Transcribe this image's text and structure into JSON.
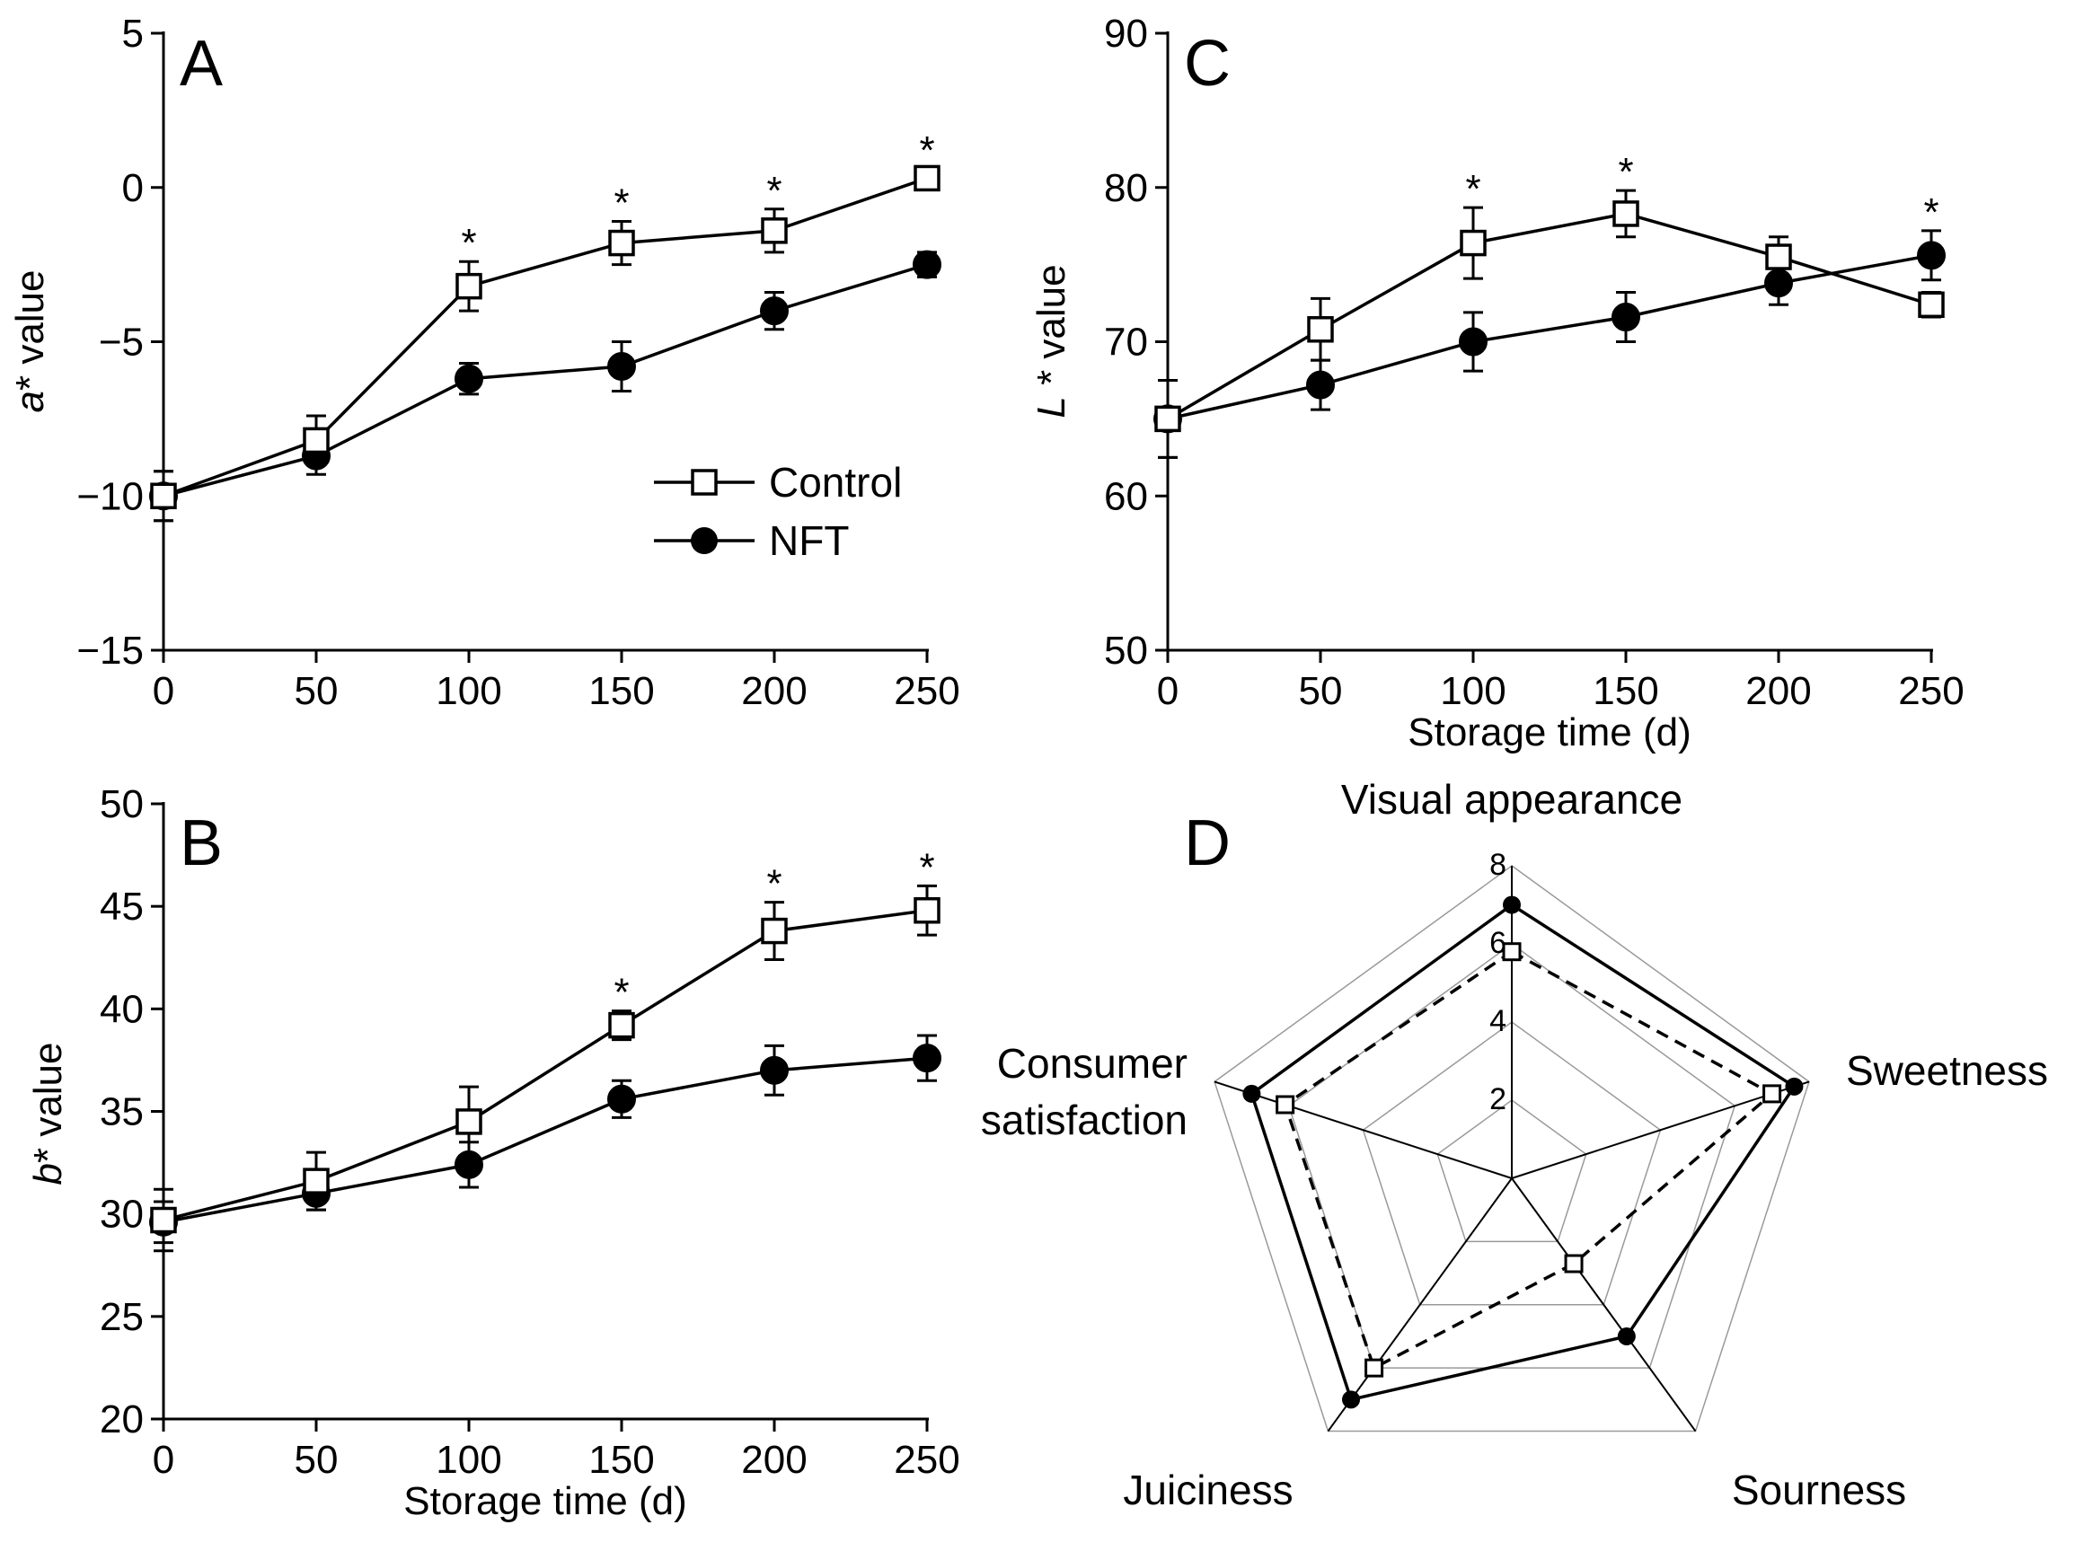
{
  "colors": {
    "ink": "#000000",
    "marker_fill_control": "#ffffff",
    "marker_fill_nft": "#000000",
    "radar_grid": "#9a9a9a"
  },
  "chart_data": [
    {
      "panel": "A",
      "type": "line",
      "xlabel": "",
      "ylabel": "a* value",
      "ylabel_italic": "a",
      "ylabel_rest": "* value",
      "xlim": [
        0,
        250
      ],
      "ylim": [
        -15,
        5
      ],
      "xticks": [
        0,
        50,
        100,
        150,
        200,
        250
      ],
      "yticks": [
        -15,
        -10,
        -5,
        0,
        5
      ],
      "xtick_labels": [
        "0",
        "50",
        "100",
        "150",
        "200",
        "250"
      ],
      "ytick_labels": [
        "−15",
        "−10",
        "−5",
        "0",
        "5"
      ],
      "legend": {
        "position": "middle-right",
        "entries": [
          "Control",
          "NFT"
        ]
      },
      "series": [
        {
          "name": "Control",
          "marker": "open-square",
          "x": [
            0,
            50,
            100,
            150,
            200,
            250
          ],
          "y": [
            -10,
            -8.2,
            -3.2,
            -1.8,
            -1.4,
            0.3
          ],
          "err": [
            0.8,
            0.8,
            0.8,
            0.7,
            0.7,
            0.3
          ]
        },
        {
          "name": "NFT",
          "marker": "filled-circle",
          "x": [
            0,
            50,
            100,
            150,
            200,
            250
          ],
          "y": [
            -10,
            -8.7,
            -6.2,
            -5.8,
            -4.0,
            -2.5
          ],
          "err": [
            0.8,
            0.6,
            0.5,
            0.8,
            0.6,
            0.4
          ]
        }
      ],
      "significance": {
        "symbol": "*",
        "x": [
          100,
          150,
          200,
          250
        ]
      }
    },
    {
      "panel": "B",
      "type": "line",
      "xlabel": "Storage time (d)",
      "ylabel": "b* value",
      "ylabel_italic": "b",
      "ylabel_rest": "* value",
      "xlim": [
        0,
        250
      ],
      "ylim": [
        20,
        50
      ],
      "xticks": [
        0,
        50,
        100,
        150,
        200,
        250
      ],
      "yticks": [
        20,
        25,
        30,
        35,
        40,
        45,
        50
      ],
      "xtick_labels": [
        "0",
        "50",
        "100",
        "150",
        "200",
        "250"
      ],
      "ytick_labels": [
        "20",
        "25",
        "30",
        "35",
        "40",
        "45",
        "50"
      ],
      "series": [
        {
          "name": "Control",
          "marker": "open-square",
          "x": [
            0,
            50,
            100,
            150,
            200,
            250
          ],
          "y": [
            29.7,
            31.6,
            34.5,
            39.2,
            43.8,
            44.8
          ],
          "err": [
            1.5,
            1.4,
            1.7,
            0.7,
            1.4,
            1.2
          ]
        },
        {
          "name": "NFT",
          "marker": "filled-circle",
          "x": [
            0,
            50,
            100,
            150,
            200,
            250
          ],
          "y": [
            29.6,
            31.0,
            32.4,
            35.6,
            37.0,
            37.6
          ],
          "err": [
            1.0,
            0.8,
            1.1,
            0.9,
            1.2,
            1.1
          ]
        }
      ],
      "significance": {
        "symbol": "*",
        "x": [
          150,
          200,
          250
        ]
      }
    },
    {
      "panel": "C",
      "type": "line",
      "xlabel": "Storage time (d)",
      "ylabel": "L* value",
      "ylabel_italic": "L",
      "ylabel_rest": " * value",
      "xlim": [
        0,
        250
      ],
      "ylim": [
        50,
        90
      ],
      "xticks": [
        0,
        50,
        100,
        150,
        200,
        250
      ],
      "yticks": [
        50,
        60,
        70,
        80,
        90
      ],
      "xtick_labels": [
        "0",
        "50",
        "100",
        "150",
        "200",
        "250"
      ],
      "ytick_labels": [
        "50",
        "60",
        "70",
        "80",
        "90"
      ],
      "series": [
        {
          "name": "Control",
          "marker": "open-square",
          "x": [
            0,
            50,
            100,
            150,
            200,
            250
          ],
          "y": [
            65,
            70.8,
            76.4,
            78.3,
            75.5,
            72.4
          ],
          "err": [
            2.5,
            2.0,
            2.3,
            1.5,
            1.3,
            0.8
          ]
        },
        {
          "name": "NFT",
          "marker": "filled-circle",
          "x": [
            0,
            50,
            100,
            150,
            200,
            250
          ],
          "y": [
            65,
            67.2,
            70.0,
            71.6,
            73.8,
            75.6
          ],
          "err": [
            2.5,
            1.6,
            1.9,
            1.6,
            1.4,
            1.6
          ]
        }
      ],
      "significance": {
        "symbol": "*",
        "x": [
          100,
          150,
          250
        ]
      }
    },
    {
      "panel": "D",
      "type": "radar",
      "axes": [
        "Visual appearance",
        "Sweetness",
        "Sourness",
        "Juiciness",
        "Consumer satisfaction"
      ],
      "axis_label_lines": [
        [
          "Visual appearance"
        ],
        [
          "Sweetness"
        ],
        [
          "Sourness"
        ],
        [
          "Juiciness"
        ],
        [
          "Consumer",
          "satisfaction"
        ]
      ],
      "rmax": 8,
      "rings": [
        2,
        4,
        6,
        8
      ],
      "ring_labels": [
        "2",
        "4",
        "6",
        "8"
      ],
      "series": [
        {
          "name": "Control",
          "marker": "open-square",
          "line": "dashed",
          "values": [
            5.8,
            7.0,
            2.7,
            6.0,
            6.1
          ]
        },
        {
          "name": "NFT",
          "marker": "filled-circle",
          "line": "solid",
          "values": [
            7.0,
            7.6,
            5.0,
            7.0,
            7.0
          ]
        }
      ]
    }
  ]
}
